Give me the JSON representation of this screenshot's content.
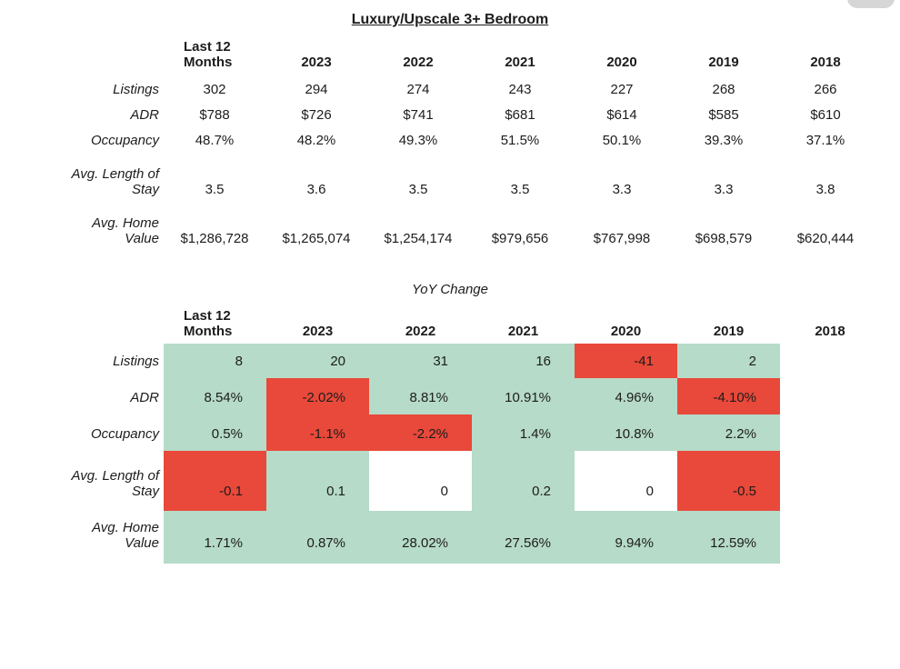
{
  "colors": {
    "pos": "#b6dbc8",
    "neg": "#e8493a",
    "zero": "#ffffff"
  },
  "chart_data": [
    {
      "type": "table",
      "title": "Luxury/Upscale 3+ Bedroom",
      "columns": [
        "Last 12 Months",
        "2023",
        "2022",
        "2021",
        "2020",
        "2019",
        "2018"
      ],
      "rows": [
        {
          "label": "Listings",
          "values": [
            "302",
            "294",
            "274",
            "243",
            "227",
            "268",
            "266"
          ]
        },
        {
          "label": "ADR",
          "values": [
            "$788",
            "$726",
            "$741",
            "$681",
            "$614",
            "$585",
            "$610"
          ]
        },
        {
          "label": "Occupancy",
          "values": [
            "48.7%",
            "48.2%",
            "49.3%",
            "51.5%",
            "50.1%",
            "39.3%",
            "37.1%"
          ]
        },
        {
          "label": "Avg. Length of Stay",
          "values": [
            "3.5",
            "3.6",
            "3.5",
            "3.5",
            "3.3",
            "3.3",
            "3.8"
          ]
        },
        {
          "label": "Avg. Home Value",
          "values": [
            "$1,286,728",
            "$1,265,074",
            "$1,254,174",
            "$979,656",
            "$767,998",
            "$698,579",
            "$620,444"
          ]
        }
      ]
    },
    {
      "type": "heatmap",
      "title": "YoY Change",
      "columns": [
        "Last 12 Months",
        "2023",
        "2022",
        "2021",
        "2020",
        "2019",
        "2018"
      ],
      "rows": [
        {
          "label": "Listings",
          "values": [
            "8",
            "20",
            "31",
            "16",
            "-41",
            "2"
          ],
          "states": [
            "pos",
            "pos",
            "pos",
            "pos",
            "neg",
            "pos"
          ]
        },
        {
          "label": "ADR",
          "values": [
            "8.54%",
            "-2.02%",
            "8.81%",
            "10.91%",
            "4.96%",
            "-4.10%"
          ],
          "states": [
            "pos",
            "neg",
            "pos",
            "pos",
            "pos",
            "neg"
          ]
        },
        {
          "label": "Occupancy",
          "values": [
            "0.5%",
            "-1.1%",
            "-2.2%",
            "1.4%",
            "10.8%",
            "2.2%"
          ],
          "states": [
            "pos",
            "neg",
            "neg",
            "pos",
            "pos",
            "pos"
          ]
        },
        {
          "label": "Avg. Length of Stay",
          "values": [
            "-0.1",
            "0.1",
            "0",
            "0.2",
            "0",
            "-0.5"
          ],
          "states": [
            "neg",
            "pos",
            "zero",
            "pos",
            "zero",
            "neg"
          ]
        },
        {
          "label": "Avg. Home Value",
          "values": [
            "1.71%",
            "0.87%",
            "28.02%",
            "27.56%",
            "9.94%",
            "12.59%"
          ],
          "states": [
            "pos",
            "pos",
            "pos",
            "pos",
            "pos",
            "pos"
          ]
        }
      ]
    }
  ]
}
